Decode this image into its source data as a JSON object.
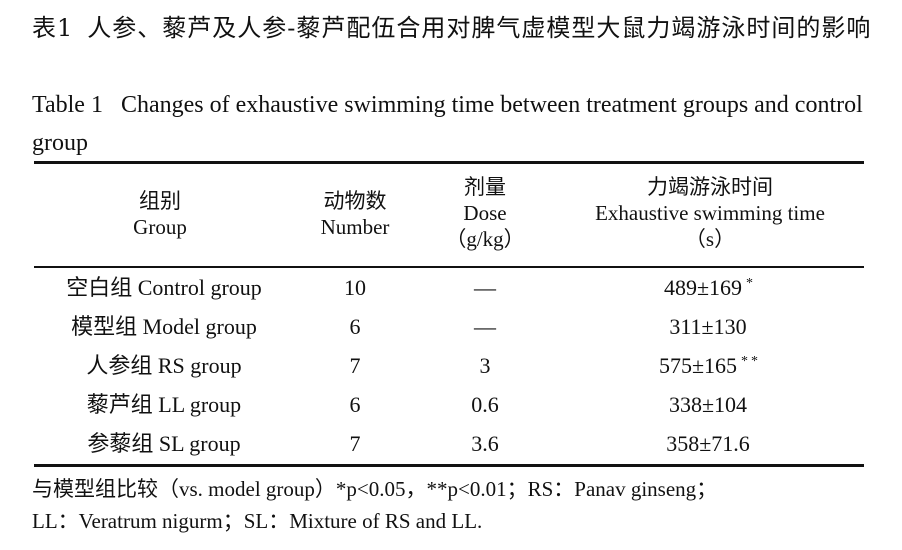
{
  "table": {
    "number_cn": "表1",
    "title_cn": "人参、藜芦及人参-藜芦配伍合用对脾气虚模型大鼠力竭游泳时间的影响",
    "number_en": "Table 1",
    "title_en": "Changes of exhaustive swimming time between treatment groups and control group",
    "headers": {
      "group_cn": "组别",
      "group_en": "Group",
      "number_cn": "动物数",
      "number_en": "Number",
      "dose_cn": "剂量",
      "dose_en": "Dose",
      "dose_unit": "（g/kg）",
      "time_cn": "力竭游泳时间",
      "time_en": "Exhaustive swimming time",
      "time_unit": "（s）"
    },
    "rows": [
      {
        "group": "空白组 Control group",
        "number": "10",
        "dose": "—",
        "time": "489±169",
        "sig": "*"
      },
      {
        "group": "模型组 Model group",
        "number": "6",
        "dose": "—",
        "time": "311±130",
        "sig": ""
      },
      {
        "group": "人参组 RS group",
        "number": "7",
        "dose": "3",
        "time": "575±165",
        "sig": "**"
      },
      {
        "group": "藜芦组 LL group",
        "number": "6",
        "dose": "0.6",
        "time": "338±104",
        "sig": ""
      },
      {
        "group": "参藜组 SL group",
        "number": "7",
        "dose": "3.6",
        "time": "358±71.6",
        "sig": ""
      }
    ],
    "footnote_line1": "与模型组比较（vs. model group）*p<0.05，**p<0.01；RS：Panav ginseng；",
    "footnote_line2": "LL：Veratrum nigurm；SL：Mixture of RS and LL."
  }
}
